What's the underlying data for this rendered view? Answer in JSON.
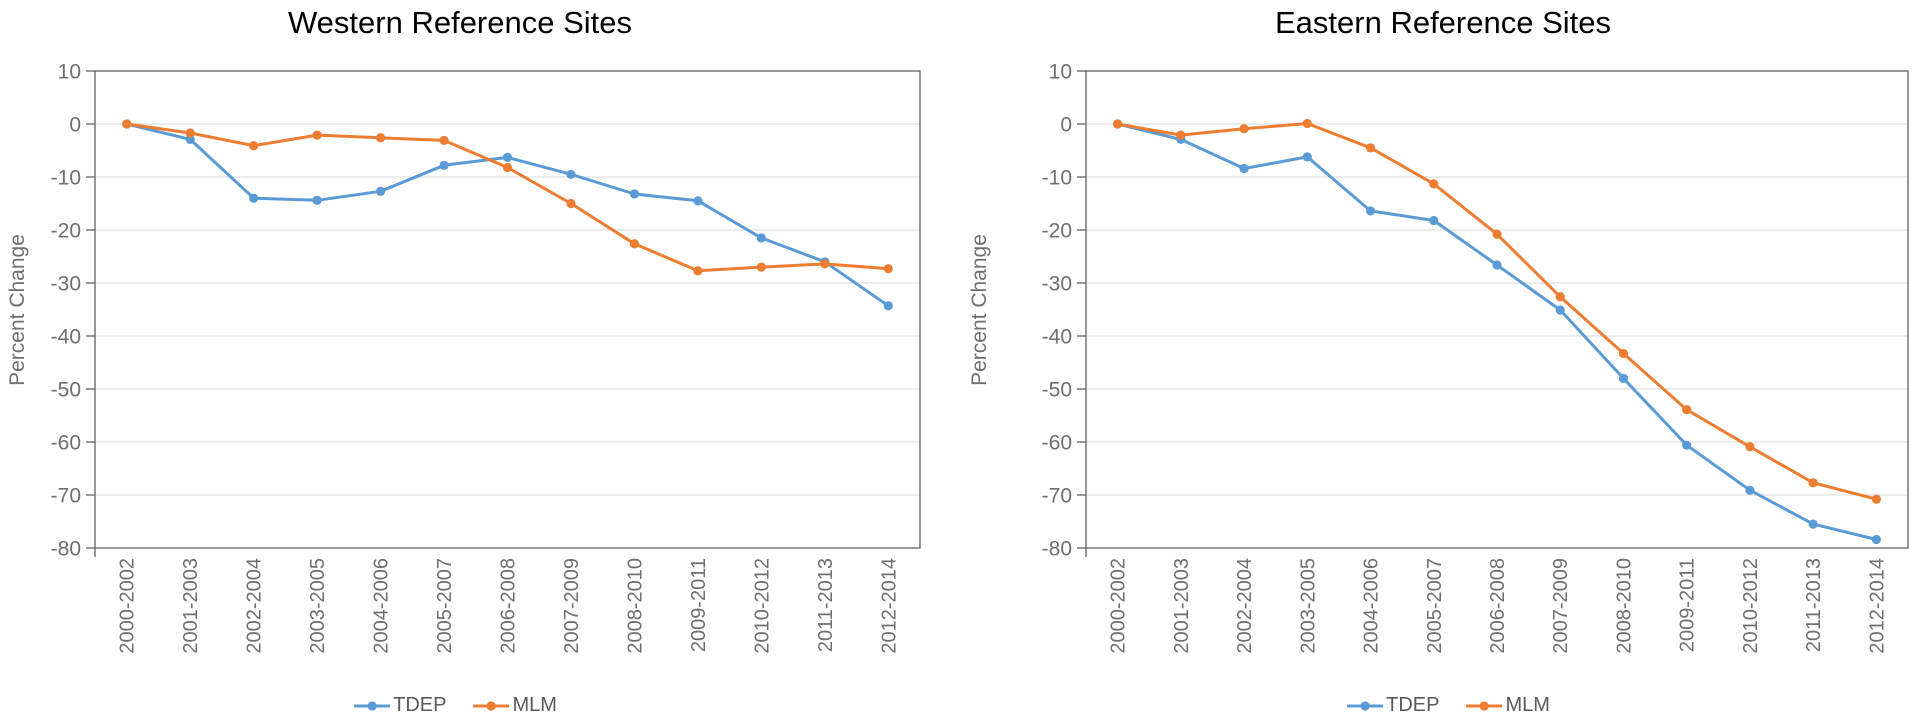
{
  "colors": {
    "tdep": "#5B9BD5",
    "mlm": "#ED7D31",
    "gridline": "#D9D9D9",
    "axis": "#6b6b6b",
    "tick_text": "#6f6f6f",
    "title_text": "#000000",
    "legend_text": "#595959",
    "background": "#ffffff"
  },
  "chart_data": [
    {
      "type": "line",
      "title": "Western Reference Sites",
      "xlabel": "",
      "ylabel": "Percent Change",
      "ylim": [
        -80,
        10
      ],
      "ytick_step": 10,
      "grid": true,
      "legend_position": "bottom",
      "marker": "circle",
      "categories": [
        "2000-2002",
        "2001-2003",
        "2002-2004",
        "2003-2005",
        "2004-2006",
        "2005-2007",
        "2006-2008",
        "2007-2009",
        "2008-2010",
        "2009-2011",
        "2010-2012",
        "2011-2013",
        "2012-2014"
      ],
      "series": [
        {
          "name": "TDEP",
          "color_key": "tdep",
          "values": [
            0,
            -2.9,
            -14.0,
            -14.4,
            -12.7,
            -7.8,
            -6.3,
            -9.5,
            -13.2,
            -14.5,
            -21.5,
            -26.0,
            -34.3
          ]
        },
        {
          "name": "MLM",
          "color_key": "mlm",
          "values": [
            0,
            -1.7,
            -4.1,
            -2.1,
            -2.6,
            -3.1,
            -8.2,
            -15.0,
            -22.6,
            -27.7,
            -27.0,
            -26.4,
            -27.3
          ]
        }
      ]
    },
    {
      "type": "line",
      "title": "Eastern Reference Sites",
      "xlabel": "",
      "ylabel": "Percent Change",
      "ylim": [
        -80,
        10
      ],
      "ytick_step": 10,
      "grid": true,
      "legend_position": "bottom",
      "marker": "circle",
      "categories": [
        "2000-2002",
        "2001-2003",
        "2002-2004",
        "2003-2005",
        "2004-2006",
        "2005-2007",
        "2006-2008",
        "2007-2009",
        "2008-2010",
        "2009-2011",
        "2010-2012",
        "2011-2013",
        "2012-2014"
      ],
      "series": [
        {
          "name": "TDEP",
          "color_key": "tdep",
          "values": [
            0,
            -2.9,
            -8.4,
            -6.2,
            -16.4,
            -18.2,
            -26.6,
            -35.1,
            -48.0,
            -60.6,
            -69.1,
            -75.5,
            -78.4
          ]
        },
        {
          "name": "MLM",
          "color_key": "mlm",
          "values": [
            0,
            -2.1,
            -0.9,
            0.1,
            -4.5,
            -11.3,
            -20.8,
            -32.6,
            -43.3,
            -53.9,
            -60.9,
            -67.7,
            -70.8
          ]
        }
      ]
    }
  ]
}
